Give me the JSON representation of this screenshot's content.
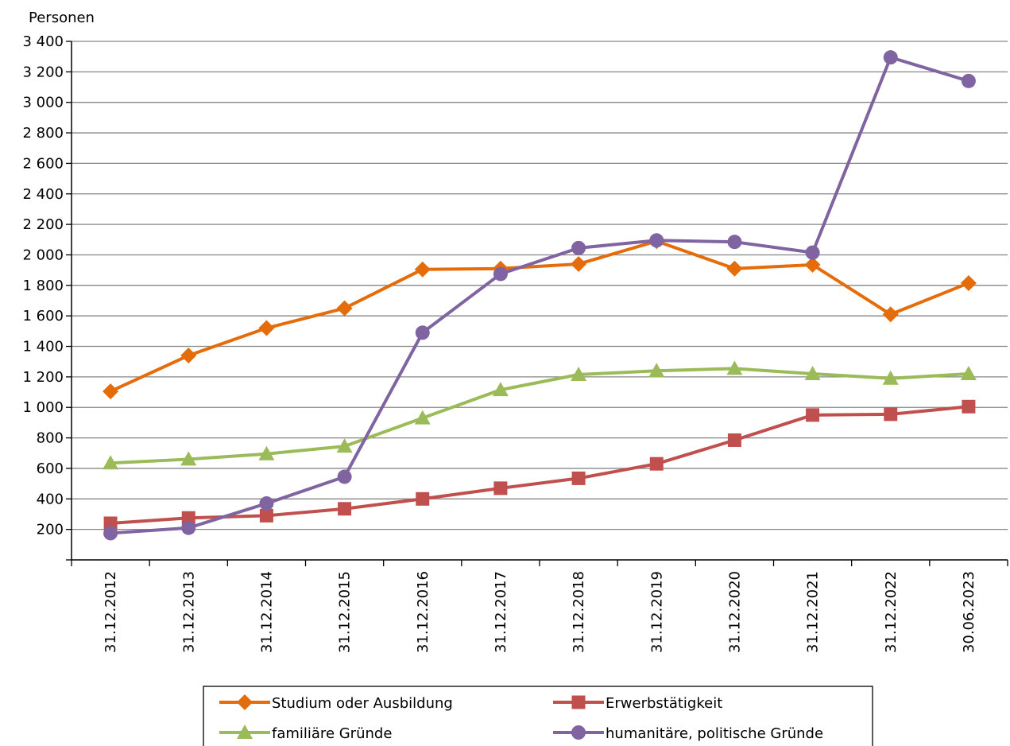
{
  "chart_data": {
    "type": "line",
    "ylabel": "Personen",
    "ylim": [
      0,
      3400
    ],
    "ytick_step": 200,
    "ytick_labels": [
      "",
      "200",
      "400",
      "600",
      "800",
      "1 000",
      "1 200",
      "1 400",
      "1 600",
      "1 800",
      "2 000",
      "2 200",
      "2 400",
      "2 600",
      "2 800",
      "3 000",
      "3 200",
      "3 400"
    ],
    "grid": true,
    "legend_position": "bottom",
    "categories": [
      "31.12.2012",
      "31.12.2013",
      "31.12.2014",
      "31.12.2015",
      "31.12.2016",
      "31.12.2017",
      "31.12.2018",
      "31.12.2019",
      "31.12.2020",
      "31.12.2021",
      "31.12.2022",
      "30.06.2023"
    ],
    "series": [
      {
        "name": "Studium oder Ausbildung",
        "color": "#E46C0A",
        "marker": "diamond",
        "values": [
          1105,
          1340,
          1520,
          1650,
          1905,
          1910,
          1940,
          2090,
          1910,
          1935,
          1610,
          1815
        ]
      },
      {
        "name": "Erwerbstätigkeit",
        "color": "#C0504D",
        "marker": "square",
        "values": [
          240,
          275,
          290,
          335,
          400,
          470,
          535,
          630,
          785,
          950,
          955,
          1005
        ]
      },
      {
        "name": "familiäre Gründe",
        "color": "#9BBB59",
        "marker": "triangle",
        "values": [
          635,
          660,
          695,
          745,
          930,
          1115,
          1215,
          1240,
          1255,
          1220,
          1190,
          1220
        ]
      },
      {
        "name": "humanitäre, politische Gründe",
        "color": "#8064A2",
        "marker": "circle",
        "values": [
          175,
          210,
          370,
          545,
          1490,
          1875,
          2045,
          2095,
          2085,
          2015,
          3295,
          3140
        ]
      }
    ]
  }
}
